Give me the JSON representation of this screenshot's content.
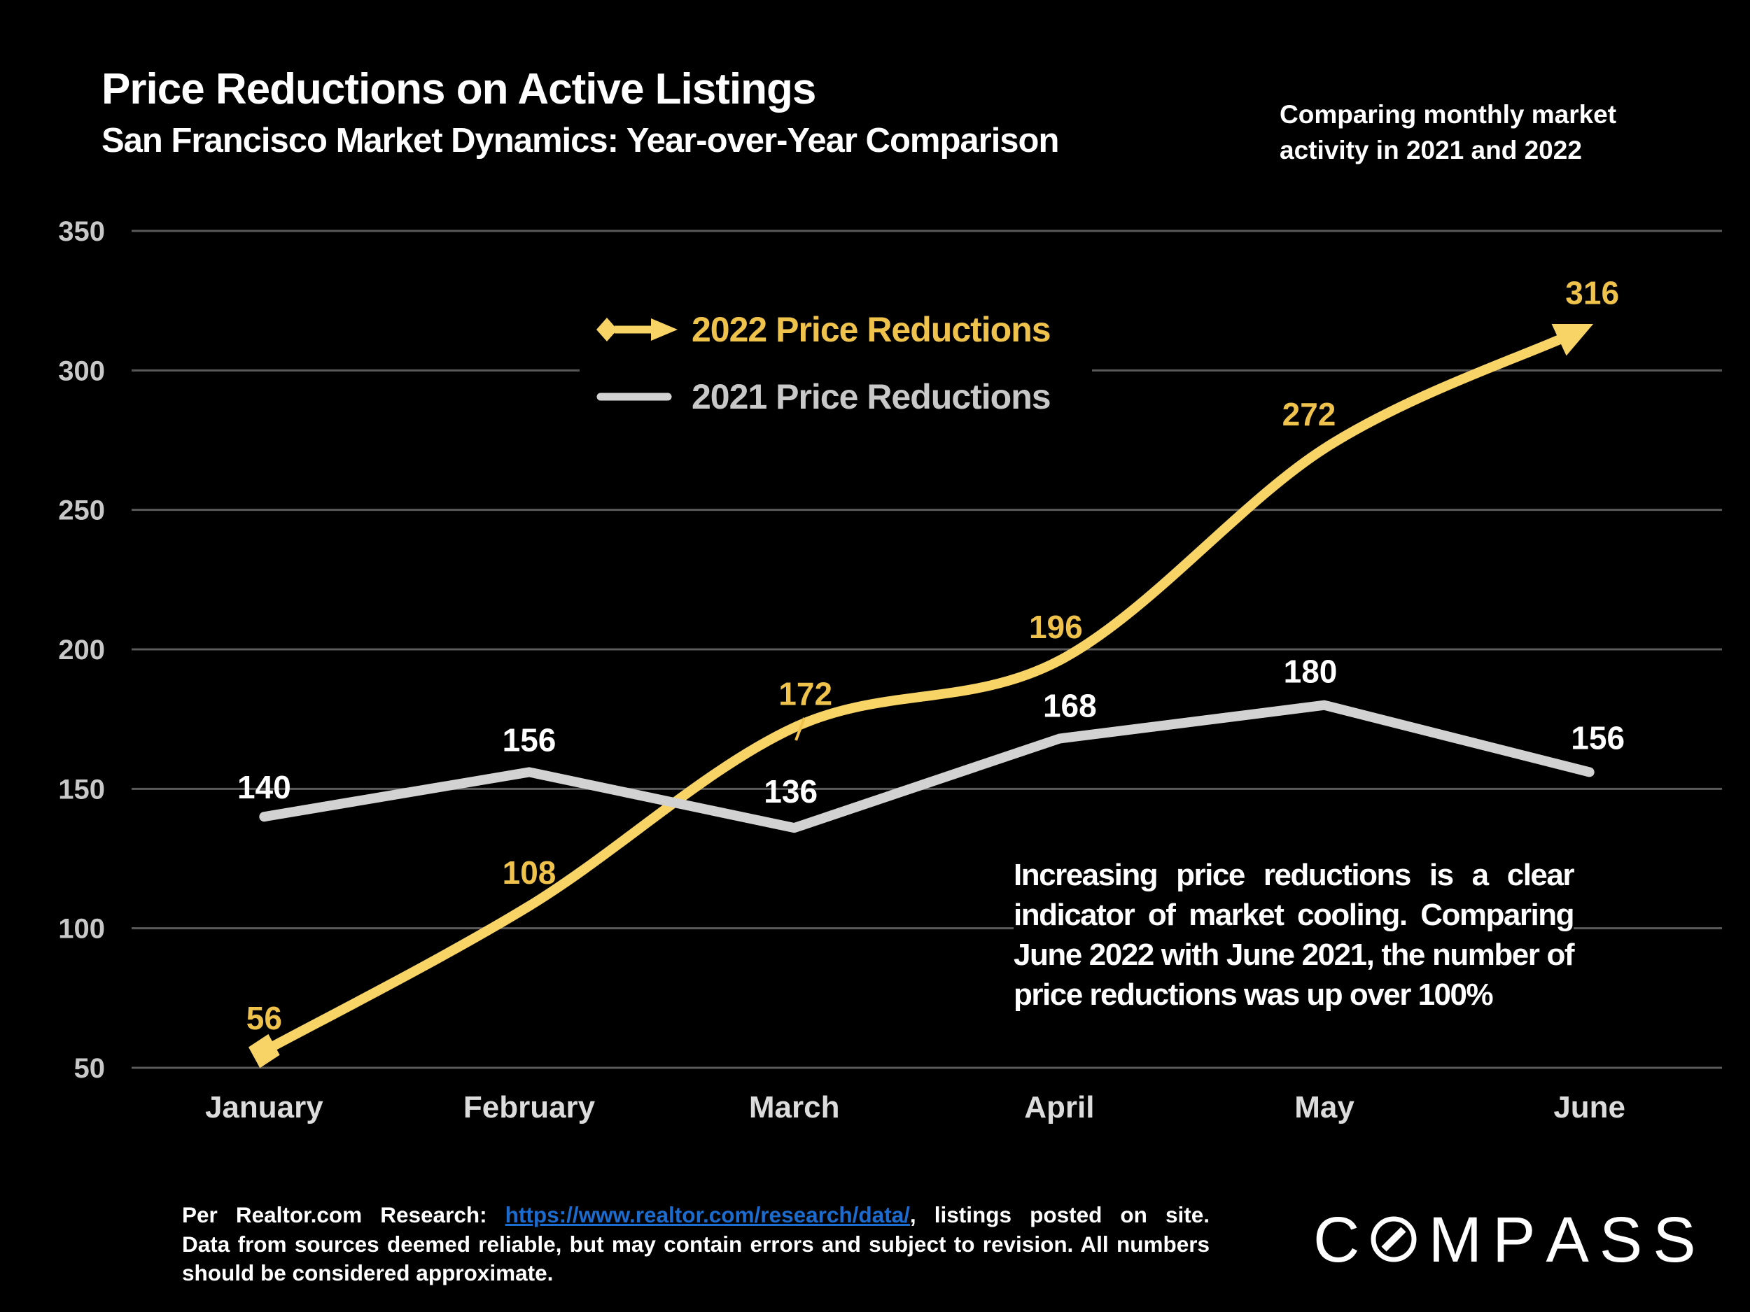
{
  "title": "Price Reductions on Active Listings",
  "subtitle": "San Francisco Market Dynamics: Year-over-Year Comparison",
  "note_top_right": "Comparing monthly market activity in 2021 and 2022",
  "chart_data": {
    "type": "line",
    "categories": [
      "January",
      "February",
      "March",
      "April",
      "May",
      "June"
    ],
    "series": [
      {
        "name": "2022 Price Reductions",
        "values": [
          56,
          108,
          172,
          196,
          272,
          316
        ],
        "color": "#F8D365",
        "label_color": "#EFC24B",
        "style": "smooth",
        "start_marker": "diamond",
        "end_marker": "arrow"
      },
      {
        "name": "2021 Price Reductions",
        "values": [
          140,
          156,
          136,
          168,
          180,
          156
        ],
        "color": "#D2D2D2",
        "label_color": "#FFFFFF",
        "style": "straight"
      }
    ],
    "ylim": [
      50,
      350
    ],
    "yticks": [
      350,
      300,
      250,
      200,
      150,
      100,
      50
    ],
    "grid": true,
    "legend_position": "top-center-inside"
  },
  "annotation": {
    "lines": [
      "Increasing price reductions is a clear",
      "indicator of market cooling. Comparing",
      "June 2022 with June 2021, the number of",
      "price reductions was up over 100%"
    ]
  },
  "footer": {
    "line1_prefix": "Per Realtor.com Research:",
    "line1_link": "https://www.realtor.com/research/data/",
    "line1_suffix": ", listings posted on site.",
    "line2": "Data from sources deemed reliable, but may contain errors and subject to revision. All numbers",
    "line3": "should be considered approximate."
  },
  "logo": {
    "letters": [
      "C",
      "M",
      "P",
      "A",
      "S",
      "S"
    ]
  },
  "colors": {
    "background": "#000000",
    "grid": "#5A5A5A",
    "ytick_text": "#C8C8C8",
    "month_text": "#DCDCDC",
    "title_text": "#FFFFFF",
    "link": "#1C6CCF"
  }
}
